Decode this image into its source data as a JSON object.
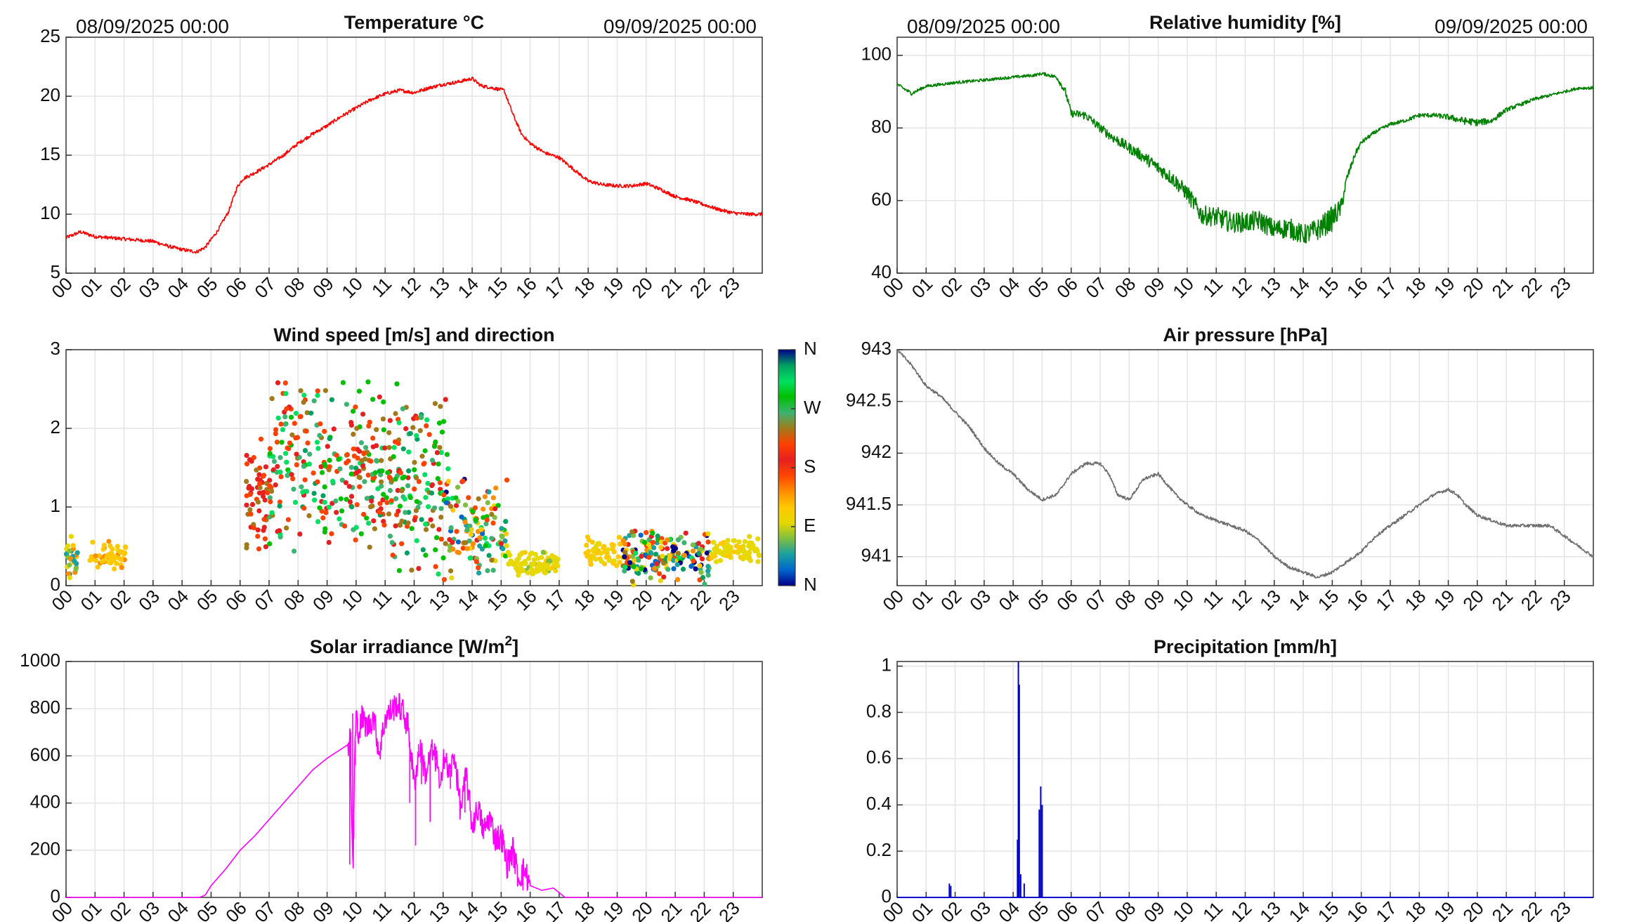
{
  "figure": {
    "hour_labels": [
      "00",
      "01",
      "02",
      "03",
      "04",
      "05",
      "06",
      "07",
      "08",
      "09",
      "10",
      "11",
      "12",
      "13",
      "14",
      "15",
      "16",
      "17",
      "18",
      "19",
      "20",
      "21",
      "22",
      "23"
    ]
  },
  "chart_data": [
    {
      "id": "temperature",
      "type": "line",
      "title": "Temperature °C",
      "date_start": "08/09/2025 00:00",
      "date_end": "09/09/2025 00:00",
      "xlabel": "",
      "ylabel": "",
      "xlim": [
        0,
        24
      ],
      "ylim": [
        5,
        25
      ],
      "yticks": [
        5,
        10,
        15,
        20,
        25
      ],
      "ytick_labels": [
        "5",
        "10",
        "15",
        "20",
        "25"
      ],
      "color": "#ff0000",
      "noise": 0.15,
      "x": [
        0,
        0.5,
        1,
        2,
        3,
        3.5,
        4,
        4.5,
        4.8,
        5.2,
        5.6,
        5.9,
        6.1,
        6.5,
        7,
        7.5,
        8,
        8.5,
        9,
        9.5,
        10,
        10.5,
        11,
        11.5,
        12,
        12.5,
        13,
        13.5,
        14,
        14.3,
        14.7,
        15.1,
        15.4,
        15.7,
        16,
        16.5,
        17,
        17.5,
        18,
        18.5,
        19,
        19.5,
        20,
        20.5,
        21,
        21.5,
        22,
        22.5,
        23,
        23.5,
        24
      ],
      "values": [
        8.0,
        8.5,
        8.1,
        7.9,
        7.7,
        7.3,
        7.0,
        6.8,
        7.2,
        8.5,
        10.2,
        12.3,
        13.0,
        13.5,
        14.2,
        15.0,
        16.0,
        16.8,
        17.5,
        18.3,
        19.0,
        19.7,
        20.2,
        20.5,
        20.3,
        20.7,
        21.0,
        21.2,
        21.5,
        20.9,
        20.7,
        20.5,
        18.5,
        16.8,
        16.0,
        15.2,
        14.8,
        13.8,
        12.8,
        12.5,
        12.4,
        12.4,
        12.6,
        12.1,
        11.5,
        11.2,
        10.8,
        10.4,
        10.1,
        10.0,
        10.0
      ]
    },
    {
      "id": "humidity",
      "type": "line",
      "title": "Relative humidity [%]",
      "date_start": "08/09/2025 00:00",
      "date_end": "09/09/2025 00:00",
      "xlabel": "",
      "ylabel": "",
      "xlim": [
        0,
        24
      ],
      "ylim": [
        40,
        105
      ],
      "yticks": [
        40,
        60,
        80,
        100
      ],
      "ytick_labels": [
        "40",
        "60",
        "80",
        "100"
      ],
      "color": "#008000",
      "x": [
        0,
        0.5,
        1,
        2,
        3,
        4,
        4.7,
        5.0,
        5.5,
        5.8,
        6.0,
        6.5,
        7,
        7.5,
        8,
        8.5,
        9,
        9.5,
        10,
        10.5,
        11,
        11.5,
        12,
        12.5,
        13,
        13.5,
        14,
        14.5,
        15.0,
        15.3,
        15.5,
        15.8,
        16,
        16.5,
        17,
        17.5,
        18,
        18.5,
        19,
        19.5,
        20,
        20.5,
        21,
        21.5,
        22,
        22.5,
        23,
        23.5,
        24
      ],
      "values": [
        92.0,
        89.5,
        91.5,
        92.5,
        93.2,
        94.0,
        94.5,
        95.0,
        94.0,
        90.0,
        84.0,
        83.5,
        80.0,
        77.0,
        74.5,
        72.0,
        69.0,
        66.0,
        62.0,
        56.0,
        55.5,
        54.0,
        54.0,
        54.5,
        52.0,
        52.5,
        50.5,
        52.0,
        55.0,
        58.0,
        66.0,
        73.0,
        76.0,
        79.0,
        81.0,
        82.0,
        83.5,
        83.5,
        83.0,
        82.0,
        81.5,
        82.0,
        85.0,
        86.5,
        88.0,
        89.0,
        90.0,
        91.0,
        91.0
      ],
      "noise": [
        0.5,
        0.5,
        0.4,
        0.4,
        0.4,
        0.4,
        0.4,
        0.4,
        0.6,
        1.0,
        1.0,
        1.2,
        1.2,
        1.4,
        1.5,
        1.6,
        1.8,
        2.0,
        2.2,
        2.6,
        2.8,
        2.8,
        2.8,
        2.8,
        2.8,
        2.8,
        2.8,
        3.0,
        3.5,
        2.5,
        1.2,
        0.8,
        0.6,
        0.5,
        0.5,
        0.5,
        0.6,
        0.6,
        0.8,
        1.0,
        1.0,
        0.8,
        0.6,
        0.5,
        0.5,
        0.4,
        0.4,
        0.4,
        0.4
      ]
    },
    {
      "id": "wind",
      "type": "scatter",
      "title": "Wind speed [m/s] and direction",
      "xlabel": "",
      "ylabel": "",
      "xlim": [
        0,
        24
      ],
      "ylim": [
        0,
        3
      ],
      "yticks": [
        0,
        1,
        2,
        3
      ],
      "ytick_labels": [
        "0",
        "1",
        "2",
        "3"
      ],
      "colorbar": {
        "labels": [
          "N",
          "E",
          "S",
          "W",
          "N"
        ],
        "colors": [
          "#00008b",
          "#0066cc",
          "#1aa0a0",
          "#7fbf3f",
          "#e6d800",
          "#ffc800",
          "#ff8c00",
          "#ff4500",
          "#e62020",
          "#ff4000",
          "#a07a1a",
          "#3cb371",
          "#00c000",
          "#00e060",
          "#00a060",
          "#00008b"
        ]
      },
      "segments": [
        {
          "x": [
            0.0,
            0.4
          ],
          "y": [
            0.0,
            0.7
          ],
          "dir": [
            40,
            140
          ],
          "n": 30
        },
        {
          "x": [
            0.8,
            2.1
          ],
          "y": [
            0.15,
            0.6
          ],
          "dir": [
            105,
            140
          ],
          "n": 50
        },
        {
          "x": [
            6.2,
            7.0
          ],
          "y": [
            0.3,
            2.0
          ],
          "dir": [
            180,
            235
          ],
          "n": 55
        },
        {
          "x": [
            7.0,
            10.5
          ],
          "y": [
            0.35,
            2.7
          ],
          "dir": [
            165,
            330
          ],
          "n": 230
        },
        {
          "x": [
            10.5,
            13.2
          ],
          "y": [
            0.1,
            2.6
          ],
          "dir": [
            180,
            340
          ],
          "n": 200
        },
        {
          "x": [
            13.0,
            15.2
          ],
          "y": [
            0.0,
            1.4
          ],
          "dir": [
            0,
            340
          ],
          "n": 130
        },
        {
          "x": [
            15.2,
            17.0
          ],
          "y": [
            0.1,
            0.45
          ],
          "dir": [
            80,
            110
          ],
          "n": 90
        },
        {
          "x": [
            17.9,
            19.2
          ],
          "y": [
            0.2,
            0.65
          ],
          "dir": [
            90,
            130
          ],
          "n": 50
        },
        {
          "x": [
            19.2,
            22.2
          ],
          "y": [
            0.0,
            0.75
          ],
          "dir": [
            0,
            360
          ],
          "n": 190
        },
        {
          "x": [
            22.2,
            23.9
          ],
          "y": [
            0.25,
            0.65
          ],
          "dir": [
            85,
            115
          ],
          "n": 80
        }
      ]
    },
    {
      "id": "pressure",
      "type": "line",
      "title": "Air pressure [hPa]",
      "xlabel": "",
      "ylabel": "",
      "xlim": [
        0,
        24
      ],
      "ylim": [
        940.72,
        943.0
      ],
      "yticks": [
        941,
        941.5,
        942,
        942.5,
        943
      ],
      "ytick_labels": [
        "941",
        "941.5",
        "942",
        "942.5",
        "943"
      ],
      "color": "#6e6e6e",
      "noise": 0.015,
      "x": [
        0,
        0.5,
        1,
        1.5,
        2,
        2.5,
        3,
        3.5,
        4,
        4.5,
        5,
        5.5,
        6,
        6.5,
        7,
        7.3,
        7.6,
        8,
        8.5,
        9,
        9.3,
        9.6,
        10,
        10.5,
        11,
        11.5,
        12,
        12.5,
        13,
        13.5,
        14,
        14.5,
        15,
        15.5,
        16,
        16.5,
        17,
        17.5,
        18,
        18.5,
        19,
        19.3,
        19.6,
        20,
        20.5,
        21,
        21.5,
        22,
        22.5,
        23,
        23.5,
        24
      ],
      "values": [
        943.0,
        942.85,
        942.65,
        942.55,
        942.4,
        942.25,
        942.05,
        941.9,
        941.8,
        941.65,
        941.55,
        941.6,
        941.8,
        941.9,
        941.9,
        941.8,
        941.6,
        941.55,
        941.75,
        941.8,
        941.7,
        941.6,
        941.5,
        941.4,
        941.35,
        941.3,
        941.25,
        941.15,
        941.0,
        940.9,
        940.85,
        940.8,
        940.85,
        940.95,
        941.05,
        941.2,
        941.3,
        941.4,
        941.5,
        941.6,
        941.65,
        941.6,
        941.5,
        941.4,
        941.35,
        941.3,
        941.3,
        941.3,
        941.3,
        941.2,
        941.1,
        941.0
      ]
    },
    {
      "id": "solar",
      "type": "line",
      "title": "Solar irradiance [W/m",
      "title_sup": "2",
      "title_end": "]",
      "xlabel": "",
      "ylabel": "",
      "xlim": [
        0,
        24
      ],
      "ylim": [
        0,
        1000
      ],
      "yticks": [
        0,
        200,
        400,
        600,
        800,
        1000
      ],
      "ytick_labels": [
        "0",
        "200",
        "400",
        "600",
        "800",
        "1000"
      ],
      "color": "#ff00ff",
      "x": [
        0,
        4.6,
        4.8,
        5.0,
        5.5,
        6.0,
        6.5,
        7.0,
        7.5,
        8.0,
        8.5,
        9.0,
        9.5,
        9.75,
        9.8,
        9.85,
        9.9,
        9.95,
        10.0,
        10.1,
        10.2,
        10.4,
        10.6,
        10.8,
        11.0,
        11.2,
        11.4,
        11.6,
        11.8,
        11.9,
        12.0,
        12.1,
        12.2,
        12.4,
        12.6,
        12.8,
        12.9,
        13.0,
        13.2,
        13.4,
        13.6,
        13.8,
        14.0,
        14.2,
        14.4,
        14.6,
        14.8,
        15.0,
        15.2,
        15.4,
        15.6,
        15.8,
        16.0,
        16.4,
        16.8,
        17.0,
        17.2,
        24
      ],
      "values": [
        0,
        0,
        10,
        50,
        120,
        200,
        260,
        330,
        400,
        470,
        540,
        590,
        630,
        650,
        670,
        280,
        150,
        600,
        760,
        700,
        760,
        720,
        770,
        610,
        760,
        790,
        820,
        790,
        720,
        600,
        480,
        560,
        640,
        520,
        620,
        570,
        420,
        620,
        520,
        600,
        370,
        520,
        300,
        380,
        280,
        340,
        250,
        260,
        140,
        200,
        80,
        120,
        50,
        30,
        40,
        20,
        0,
        0
      ],
      "spikes": [
        [
          9.78,
          140
        ],
        [
          9.82,
          700
        ],
        [
          9.88,
          780
        ],
        [
          9.92,
          250
        ],
        [
          9.97,
          560
        ],
        [
          10.05,
          760
        ],
        [
          11.85,
          400
        ],
        [
          12.05,
          220
        ],
        [
          12.15,
          650
        ],
        [
          12.25,
          480
        ],
        [
          12.55,
          320
        ],
        [
          12.75,
          640
        ],
        [
          13.05,
          580
        ],
        [
          13.25,
          460
        ],
        [
          13.55,
          430
        ],
        [
          13.75,
          360
        ],
        [
          14.05,
          340
        ],
        [
          14.35,
          260
        ],
        [
          14.55,
          320
        ],
        [
          14.95,
          200
        ],
        [
          15.05,
          290
        ],
        [
          15.35,
          140
        ],
        [
          15.5,
          160
        ],
        [
          15.75,
          30
        ]
      ]
    },
    {
      "id": "precipitation",
      "type": "line",
      "title": "Precipitation [mm/h]",
      "xlabel": "",
      "ylabel": "",
      "xlim": [
        0,
        24
      ],
      "ylim": [
        0,
        1.02
      ],
      "yticks": [
        0,
        0.2,
        0.4,
        0.6,
        0.8,
        1
      ],
      "ytick_labels": [
        "0",
        "0.2",
        "0.4",
        "0.6",
        "0.8",
        "1"
      ],
      "color": "#0000cc",
      "events": [
        {
          "x": 1.8,
          "v": 0.06
        },
        {
          "x": 1.85,
          "v": 0.05
        },
        {
          "x": 4.15,
          "v": 0.25
        },
        {
          "x": 4.18,
          "v": 1.02
        },
        {
          "x": 4.21,
          "v": 0.92
        },
        {
          "x": 4.26,
          "v": 0.1
        },
        {
          "x": 4.38,
          "v": 0.06
        },
        {
          "x": 4.9,
          "v": 0.38
        },
        {
          "x": 4.95,
          "v": 0.48
        },
        {
          "x": 5.0,
          "v": 0.4
        }
      ]
    }
  ]
}
